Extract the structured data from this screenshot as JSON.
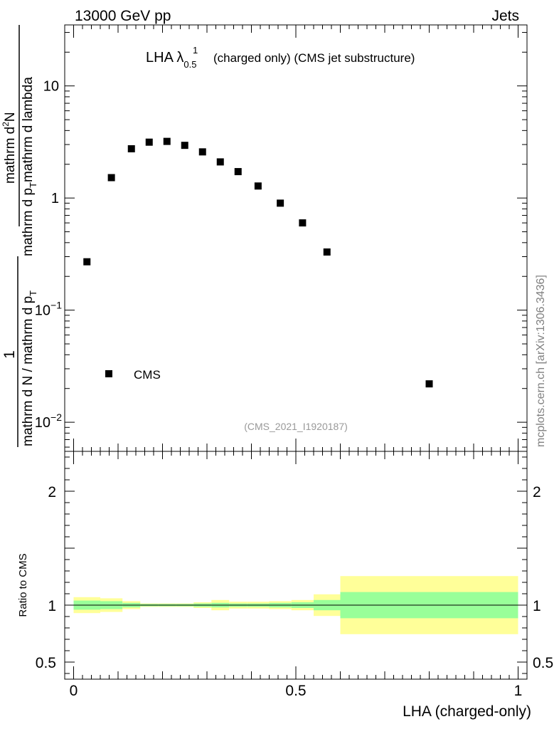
{
  "header": {
    "left": "13000 GeV pp",
    "right": "Jets"
  },
  "plot_title": {
    "main": "LHA λ",
    "superscript": "1",
    "subscript": "0.5",
    "rest": "(charged only) (CMS jet substructure)"
  },
  "watermark": "mcplots.cern.ch [arXiv:1306.3436]",
  "analysis_id": "(CMS_2021_I1920187)",
  "y_label": {
    "numerator_one": "1",
    "denominator": "mathrm d N / mathrm d p",
    "denominator_sub": "T",
    "upper_part1": "mathrm d",
    "upper_sup": "2",
    "upper_part2": "N",
    "lower_part1": "mathrm d p",
    "lower_sub": "T",
    "lower_part2": "mathrm d lambda"
  },
  "x_label": "LHA (charged-only)",
  "ratio_label": "Ratio to CMS",
  "legend": {
    "label": "CMS"
  },
  "colors": {
    "band_inner": "#99ff99",
    "band_outer": "#ffff99",
    "marker": "#000000",
    "watermark": "#808080"
  },
  "chart_data": {
    "type": "scatter",
    "main_panel": {
      "y_scale": "log",
      "xlim": [
        -0.02,
        1.02
      ],
      "ylim": [
        0.0055,
        35
      ],
      "y_ticks": [
        {
          "value": 0.01,
          "base": "10",
          "exp": "−2"
        },
        {
          "value": 0.1,
          "base": "10",
          "exp": "−1"
        },
        {
          "value": 1,
          "label": "1"
        },
        {
          "value": 10,
          "label": "10"
        }
      ],
      "series": [
        {
          "name": "CMS",
          "x": [
            0.03,
            0.085,
            0.13,
            0.17,
            0.21,
            0.25,
            0.29,
            0.33,
            0.37,
            0.415,
            0.465,
            0.515,
            0.57,
            0.8
          ],
          "y": [
            0.27,
            1.52,
            2.75,
            3.15,
            3.2,
            2.95,
            2.58,
            2.1,
            1.72,
            1.28,
            0.9,
            0.6,
            0.33,
            0.022
          ]
        }
      ]
    },
    "ratio_panel": {
      "xlim": [
        -0.02,
        1.02
      ],
      "ylim": [
        0.35,
        2.35
      ],
      "y_ticks": [
        0.5,
        1,
        2
      ],
      "x_ticks": [
        0,
        0.5,
        1
      ],
      "reference": 1,
      "bins": [
        {
          "x0": 0.0,
          "x1": 0.06,
          "inner_lo": 0.96,
          "inner_hi": 1.04,
          "outer_lo": 0.93,
          "outer_hi": 1.07
        },
        {
          "x0": 0.06,
          "x1": 0.11,
          "inner_lo": 0.965,
          "inner_hi": 1.035,
          "outer_lo": 0.94,
          "outer_hi": 1.06
        },
        {
          "x0": 0.11,
          "x1": 0.15,
          "inner_lo": 0.98,
          "inner_hi": 1.02,
          "outer_lo": 0.965,
          "outer_hi": 1.035
        },
        {
          "x0": 0.15,
          "x1": 0.19,
          "inner_lo": 0.99,
          "inner_hi": 1.01,
          "outer_lo": 0.985,
          "outer_hi": 1.015
        },
        {
          "x0": 0.19,
          "x1": 0.23,
          "inner_lo": 0.99,
          "inner_hi": 1.01,
          "outer_lo": 0.985,
          "outer_hi": 1.015
        },
        {
          "x0": 0.23,
          "x1": 0.27,
          "inner_lo": 0.99,
          "inner_hi": 1.01,
          "outer_lo": 0.985,
          "outer_hi": 1.015
        },
        {
          "x0": 0.27,
          "x1": 0.31,
          "inner_lo": 0.985,
          "inner_hi": 1.015,
          "outer_lo": 0.975,
          "outer_hi": 1.025
        },
        {
          "x0": 0.31,
          "x1": 0.35,
          "inner_lo": 0.98,
          "inner_hi": 1.02,
          "outer_lo": 0.955,
          "outer_hi": 1.045
        },
        {
          "x0": 0.35,
          "x1": 0.39,
          "inner_lo": 0.985,
          "inner_hi": 1.015,
          "outer_lo": 0.97,
          "outer_hi": 1.03
        },
        {
          "x0": 0.39,
          "x1": 0.44,
          "inner_lo": 0.985,
          "inner_hi": 1.015,
          "outer_lo": 0.97,
          "outer_hi": 1.03
        },
        {
          "x0": 0.44,
          "x1": 0.49,
          "inner_lo": 0.98,
          "inner_hi": 1.02,
          "outer_lo": 0.965,
          "outer_hi": 1.035
        },
        {
          "x0": 0.49,
          "x1": 0.54,
          "inner_lo": 0.975,
          "inner_hi": 1.025,
          "outer_lo": 0.955,
          "outer_hi": 1.045
        },
        {
          "x0": 0.54,
          "x1": 0.6,
          "inner_lo": 0.955,
          "inner_hi": 1.045,
          "outer_lo": 0.905,
          "outer_hi": 1.095
        },
        {
          "x0": 0.6,
          "x1": 1.0,
          "inner_lo": 0.885,
          "inner_hi": 1.115,
          "outer_lo": 0.745,
          "outer_hi": 1.255
        }
      ]
    }
  }
}
